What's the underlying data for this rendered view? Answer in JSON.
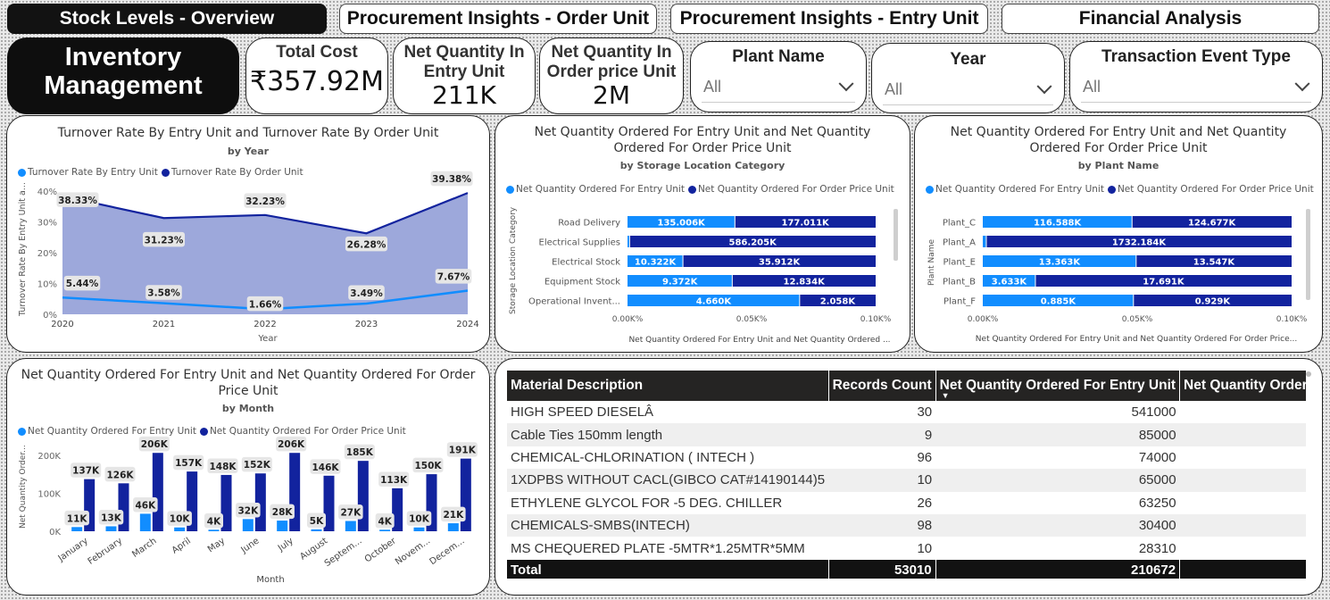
{
  "tabs": [
    {
      "label": "Stock Levels - Overview",
      "active": true
    },
    {
      "label": "Procurement Insights - Order Unit",
      "active": false
    },
    {
      "label": "Procurement Insights - Entry Unit",
      "active": false
    },
    {
      "label": "Financial Analysis",
      "active": false
    }
  ],
  "header": {
    "title_line1": "Inventory",
    "title_line2": "Management"
  },
  "kpis": {
    "total_cost": {
      "label": "Total Cost",
      "value": "₹357.92M"
    },
    "net_qty_entry": {
      "label_line1": "Net Quantity In",
      "label_line2": "Entry Unit",
      "value": "211K"
    },
    "net_qty_order": {
      "label_line1": "Net Quantity In",
      "label_line2": "Order price Unit",
      "value": "2M"
    }
  },
  "slicers": {
    "plant": {
      "label": "Plant Name",
      "value": "All"
    },
    "year": {
      "label": "Year",
      "value": "All"
    },
    "transaction": {
      "label": "Transaction Event Type",
      "value": "All"
    }
  },
  "colors": {
    "entry": "#118dff",
    "order": "#12239e",
    "area_fill": "#98a3d9"
  },
  "charts": {
    "turnover": {
      "title": "Turnover Rate By Entry Unit and Turnover Rate By Order Unit",
      "subtitle": "by Year",
      "legend": [
        "Turnover Rate By Entry Unit",
        "Turnover Rate By Order Unit"
      ],
      "ylabel": "Turnover Rate By Entry Unit a...",
      "xlabel": "Year",
      "yticks": [
        "40%",
        "30%",
        "20%",
        "10%",
        "0%"
      ]
    },
    "storage": {
      "title_line1": "Net Quantity Ordered For Entry Unit and Net Quantity",
      "title_line2": "Ordered For Order Price Unit",
      "subtitle": "by Storage Location Category",
      "legend": [
        "Net Quantity Ordered For Entry Unit",
        "Net Quantity Ordered For Order Price Unit"
      ],
      "ylabel": "Storage Location Category",
      "xlabel": "Net Quantity Ordered For Entry Unit and Net Quantity Ordered ...",
      "xticks": [
        "0.00K%",
        "0.05K%",
        "0.10K%"
      ]
    },
    "plant": {
      "title_line1": "Net Quantity Ordered For Entry Unit and Net Quantity",
      "title_line2": "Ordered For Order Price Unit",
      "subtitle": "by Plant Name",
      "legend": [
        "Net Quantity Ordered For Entry Unit",
        "Net Quantity Ordered For Order Price Unit"
      ],
      "ylabel": "Plant Name",
      "xlabel": "Net Quantity Ordered For Entry Unit and Net Quantity Ordered For Order Price...",
      "xticks": [
        "0.00K%",
        "0.05K%",
        "0.10K%"
      ]
    },
    "month": {
      "title_line1": "Net Quantity Ordered For Entry Unit and Net Quantity Ordered For Order",
      "title_line2": "Price Unit",
      "subtitle": "by Month",
      "legend": [
        "Net Quantity Ordered For Entry Unit",
        "Net Quantity Ordered For Order Price Unit"
      ],
      "ylabel": "Net Quantity Order...",
      "xlabel": "Month",
      "yticks": [
        "200K",
        "100K",
        "0K"
      ]
    }
  },
  "chart_data": [
    {
      "type": "area",
      "title": "Turnover Rate By Entry Unit and Turnover Rate By Order Unit",
      "subtitle": "by Year",
      "xlabel": "Year",
      "ylabel": "Turnover Rate By Entry Unit a...",
      "x": [
        2020,
        2021,
        2022,
        2023,
        2024
      ],
      "ylim": [
        0,
        40
      ],
      "series": [
        {
          "name": "Turnover Rate By Entry Unit",
          "values": [
            5.44,
            3.58,
            1.66,
            3.49,
            7.67
          ],
          "labels": [
            "5.44%",
            "3.58%",
            "1.66%",
            "3.49%",
            "7.67%"
          ]
        },
        {
          "name": "Turnover Rate By Order Unit",
          "values": [
            38.33,
            31.23,
            32.23,
            26.28,
            39.38
          ],
          "labels": [
            "38.33%",
            "31.23%",
            "32.23%",
            "26.28%",
            "39.38%"
          ]
        }
      ],
      "legend_position": "top-left"
    },
    {
      "type": "bar",
      "orientation": "horizontal-stacked-100",
      "subtitle": "by Storage Location Category",
      "categories": [
        "Road Delivery",
        "Electrical Supplies",
        "Electrical Stock",
        "Equipment Stock",
        "Operational Invent..."
      ],
      "series": [
        {
          "name": "Net Quantity Ordered For Entry Unit",
          "values": [
            135.006,
            5,
            10.322,
            9.372,
            4.66
          ],
          "labels": [
            "135.006K",
            "",
            "10.322K",
            "9.372K",
            "4.660K"
          ]
        },
        {
          "name": "Net Quantity Ordered For Order Price Unit",
          "values": [
            177.011,
            586.205,
            35.912,
            12.834,
            2.058
          ],
          "labels": [
            "177.011K",
            "586.205K",
            "35.912K",
            "12.834K",
            "2.058K"
          ]
        }
      ]
    },
    {
      "type": "bar",
      "orientation": "horizontal-stacked-100",
      "subtitle": "by Plant Name",
      "categories": [
        "Plant_C",
        "Plant_A",
        "Plant_E",
        "Plant_B",
        "Plant_F"
      ],
      "series": [
        {
          "name": "Net Quantity Ordered For Entry Unit",
          "values": [
            116.588,
            20,
            13.363,
            3.633,
            0.885
          ],
          "labels": [
            "116.588K",
            "",
            "13.363K",
            "3.633K",
            "0.885K"
          ]
        },
        {
          "name": "Net Quantity Ordered For Order Price Unit",
          "values": [
            124.677,
            1732.184,
            13.547,
            17.691,
            0.929
          ],
          "labels": [
            "124.677K",
            "1732.184K",
            "13.547K",
            "17.691K",
            "0.929K"
          ]
        }
      ]
    },
    {
      "type": "bar",
      "subtitle": "by Month",
      "xlabel": "Month",
      "ylabel": "Net Quantity Order...",
      "ylim": [
        0,
        230
      ],
      "categories": [
        "January",
        "February",
        "March",
        "April",
        "May",
        "June",
        "July",
        "August",
        "Septem...",
        "October",
        "Novem...",
        "Decem..."
      ],
      "series": [
        {
          "name": "Net Quantity Ordered For Entry Unit",
          "values": [
            11,
            13,
            46,
            10,
            4,
            32,
            28,
            5,
            27,
            4,
            10,
            21
          ],
          "labels": [
            "11K",
            "13K",
            "46K",
            "10K",
            "4K",
            "32K",
            "28K",
            "5K",
            "27K",
            "4K",
            "10K",
            "21K"
          ]
        },
        {
          "name": "Net Quantity Ordered For Order Price Unit",
          "values": [
            137,
            126,
            206,
            157,
            148,
            152,
            206,
            146,
            185,
            113,
            150,
            191
          ],
          "labels": [
            "137K",
            "126K",
            "206K",
            "157K",
            "148K",
            "152K",
            "206K",
            "146K",
            "185K",
            "113K",
            "150K",
            "191K"
          ]
        }
      ]
    }
  ],
  "table": {
    "columns": [
      "Material Description",
      "Records Count",
      "Net Quantity Ordered For Entry Unit",
      "Net Quantity Ordered"
    ],
    "rows": [
      [
        "HIGH SPEED DIESELÂ",
        "30",
        "541000",
        ""
      ],
      [
        "Cable Ties 150mm length",
        "9",
        "85000",
        ""
      ],
      [
        "CHEMICAL-CHLORINATION ( INTECH )",
        "96",
        "74000",
        ""
      ],
      [
        "1XDPBS WITHOUT CACL(GIBCO CAT#14190144)5",
        "10",
        "65000",
        ""
      ],
      [
        "ETHYLENE GLYCOL FOR -5 DEG. CHILLER",
        "26",
        "63250",
        ""
      ],
      [
        "CHEMICALS-SMBS(INTECH)",
        "98",
        "30400",
        ""
      ],
      [
        "MS CHEQUERED PLATE -5MTR*1.25MTR*5MM",
        "10",
        "28310",
        ""
      ]
    ],
    "total": [
      "Total",
      "53010",
      "210672",
      ""
    ]
  }
}
